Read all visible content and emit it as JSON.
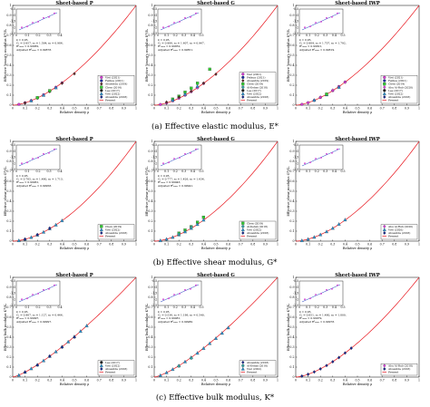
{
  "captions": [
    "(a) Effective elastic modulus, E*",
    "(b) Effective shear modulus, G*",
    "(c) Effective bulk modulus, K*"
  ],
  "colors": {
    "present": "#e8141c",
    "fit": "#1f3fbf",
    "Viet (2021)": "#d23fd2",
    "Feihua (2021)": "#1f2f9f",
    "Abueidda (2019)": "#5a2a2a",
    "Chen (2016)": "#32c832",
    "Chen (2019)": "#32c832",
    "Lee (2017)": "#222222",
    "Viet (2022)": "#2a8fc9",
    "Abueidda (2018)": "#1a2a8a",
    "Al-Ketan (2018)": "#3aa0a0",
    "Abu Al-Rub (2020)": "#d23fd2",
    "Abu Al-Rub (2018)": "#d23fd2",
    "Viet (2020)": "#2a8fc9"
  },
  "chart_data": [
    {
      "type": "scatter",
      "title": "Sheet-based P",
      "xlabel": "Relative density ρ",
      "ylabel": "Effective Young's modulus E*/Eₛ",
      "xlim": [
        0,
        1
      ],
      "ylim": [
        0,
        1
      ],
      "xticks": [
        "0",
        "0.1",
        "0.2",
        "0.3",
        "0.4",
        "0.5",
        "0.6",
        "0.7",
        "0.8",
        "0.9",
        "1"
      ],
      "yticks": [
        "0",
        "0.1",
        "0.2",
        "0.3",
        "0.4",
        "0.5",
        "0.6",
        "0.7",
        "0.8",
        "0.9",
        "1"
      ],
      "present_exponent": 1.63,
      "legend": [
        "Viet (2021)",
        "Feihua (2021)",
        "Abueidda (2019)",
        "Chen (2016)",
        "Lee (2017)",
        "Viet (2022)",
        "Abueidda (2018)",
        "Present"
      ],
      "series": [
        {
          "name": "Viet (2021)",
          "marker": "circle",
          "x": [
            0.05,
            0.1,
            0.15,
            0.2,
            0.25,
            0.3,
            0.35,
            0.4
          ],
          "y": [
            0.0075,
            0.024,
            0.046,
            0.073,
            0.104,
            0.139,
            0.179,
            0.224
          ]
        },
        {
          "name": "Abueidda (2019)",
          "marker": "diamond",
          "x": [
            0.1,
            0.2,
            0.3,
            0.4,
            0.5
          ],
          "y": [
            0.022,
            0.071,
            0.137,
            0.22,
            0.315
          ]
        },
        {
          "name": "Chen (2016)",
          "marker": "square",
          "x": [
            0.2,
            0.3
          ],
          "y": [
            0.075,
            0.145
          ]
        },
        {
          "name": "Viet (2022)",
          "marker": "triangle",
          "x": [
            0.15,
            0.25,
            0.35
          ],
          "y": [
            0.044,
            0.1,
            0.175
          ]
        }
      ],
      "inset": {
        "xticks": [
          "0",
          "0.1",
          "0.2",
          "0.3",
          "0.4"
        ],
        "yticks": [
          "-2.5",
          "-2",
          "-1.5",
          "-1",
          "-0.5"
        ],
        "annotation": [
          "k = 0.95,",
          "C₁ = 0.957, n₁ = 1.594, n₂ = 0.986,",
          "R²ₘₙₘ = 0.99882,",
          "Adjusted R²ₘₙₘ = 0.99878."
        ]
      }
    },
    {
      "type": "scatter",
      "title": "Sheet-based G",
      "xlabel": "Relative density ρ",
      "ylabel": "Effective Young's modulus E*/Eₛ",
      "xlim": [
        0,
        1
      ],
      "ylim": [
        0,
        1
      ],
      "xticks": [
        "0",
        "0.1",
        "0.2",
        "0.3",
        "0.4",
        "0.5",
        "0.6",
        "0.7",
        "0.8",
        "0.9",
        "1"
      ],
      "yticks": [
        "0",
        "0.1",
        "0.2",
        "0.3",
        "0.4",
        "0.5",
        "0.6",
        "0.7",
        "0.8",
        "0.9",
        "1"
      ],
      "present_exponent": 1.66,
      "legend": [
        "Viet (2021)",
        "Feihua (2021)",
        "Abueidda (2019)",
        "Chen (2019)",
        "Al-Ketan (2018)",
        "Lee (2017)",
        "Viet (2022)",
        "Abueidda (2018)",
        "Present"
      ],
      "series": [
        {
          "name": "Chen (2019)",
          "marker": "square",
          "x": [
            0.15,
            0.2,
            0.25,
            0.3,
            0.35,
            0.45
          ],
          "y": [
            0.06,
            0.09,
            0.13,
            0.17,
            0.22,
            0.36
          ]
        },
        {
          "name": "Viet (2021)",
          "marker": "circle",
          "x": [
            0.05,
            0.1,
            0.15,
            0.2,
            0.25,
            0.3,
            0.35,
            0.4
          ],
          "y": [
            0.007,
            0.022,
            0.043,
            0.069,
            0.1,
            0.135,
            0.174,
            0.218
          ]
        },
        {
          "name": "Abueidda (2019)",
          "marker": "diamond",
          "x": [
            0.1,
            0.2,
            0.3,
            0.4,
            0.5
          ],
          "y": [
            0.03,
            0.08,
            0.14,
            0.22,
            0.31
          ]
        },
        {
          "name": "Viet (2022)",
          "marker": "triangle",
          "x": [
            0.15,
            0.25,
            0.35
          ],
          "y": [
            0.05,
            0.11,
            0.19
          ]
        }
      ],
      "inset": {
        "xticks": [
          "0",
          "0.1",
          "0.2",
          "0.3",
          "0.4",
          "0.5"
        ],
        "yticks": [
          "-2.5",
          "-2",
          "-1.5",
          "-1",
          "-0.5"
        ],
        "annotation": [
          "k = 0.95,",
          "C₁ = 0.986, n₁ = 1.607, n₂ = 0.967,",
          "R²ₘₙₘ = 0.99852,",
          "Adjusted R²ₘₙₘ = 0.99851."
        ]
      }
    },
    {
      "type": "scatter",
      "title": "Sheet-based IWP",
      "xlabel": "Relative density ρ",
      "ylabel": "Effective Young's modulus E*/Eₛ",
      "xlim": [
        0,
        1
      ],
      "ylim": [
        0,
        1
      ],
      "xticks": [
        "0",
        "0.1",
        "0.2",
        "0.3",
        "0.4",
        "0.5",
        "0.6",
        "0.7",
        "0.8",
        "0.9",
        "1"
      ],
      "yticks": [
        "0",
        "0.1",
        "0.2",
        "0.3",
        "0.4",
        "0.5",
        "0.6",
        "0.7",
        "0.8",
        "0.9",
        "1"
      ],
      "present_exponent": 1.6,
      "legend": [
        "Viet (2021)",
        "Feihua (2021)",
        "Chen (2019)",
        "Abu Al-Rub (2020)",
        "Lee (2017)",
        "Viet (2022)",
        "Abueidda (2018)",
        "Present"
      ],
      "series": [
        {
          "name": "Viet (2021)",
          "marker": "circle",
          "x": [
            0.05,
            0.1,
            0.15,
            0.2,
            0.25,
            0.3,
            0.35,
            0.4
          ],
          "y": [
            0.008,
            0.025,
            0.048,
            0.077,
            0.11,
            0.146,
            0.187,
            0.232
          ]
        },
        {
          "name": "Abu Al-Rub (2020)",
          "marker": "diamond",
          "x": [
            0.2,
            0.3,
            0.4
          ],
          "y": [
            0.08,
            0.15,
            0.23
          ]
        },
        {
          "name": "Viet (2022)",
          "marker": "triangle",
          "x": [
            0.15,
            0.25,
            0.35
          ],
          "y": [
            0.05,
            0.105,
            0.18
          ]
        },
        {
          "name": "Chen (2019)",
          "marker": "square",
          "x": [
            0.25
          ],
          "y": [
            0.11
          ]
        }
      ],
      "inset": {
        "xticks": [
          "0",
          "0.1",
          "0.2",
          "0.3",
          "0.4",
          "0.5"
        ],
        "yticks": [
          "-2.5",
          "-2",
          "-1.5",
          "-1",
          "-0.5"
        ],
        "annotation": [
          "k = 0.95,",
          "C₁ = 0.984, n₁ = 1.707, n₂ = 1.792,",
          "R²ₘₙₘ = 0.99821,",
          "Adjusted R²ₘₙₘ = 0.99819."
        ]
      }
    },
    {
      "type": "scatter",
      "title": "Sheet-based P",
      "xlabel": "Relative density ρ",
      "ylabel": "Effective shear modulus G*/Gₛ",
      "xlim": [
        0,
        1
      ],
      "ylim": [
        0,
        1
      ],
      "xticks": [
        "0",
        "0.1",
        "0.2",
        "0.3",
        "0.4",
        "0.5",
        "0.6",
        "0.7",
        "0.8",
        "0.9",
        "1"
      ],
      "yticks": [
        "0",
        "0.1",
        "0.2",
        "0.3",
        "0.4",
        "0.5",
        "0.6",
        "0.7",
        "0.8",
        "0.9",
        "1"
      ],
      "present_exponent": 1.73,
      "legend": [
        "Chen (2019)",
        "Viet (2022)",
        "Abueidda (2018)",
        "Present"
      ],
      "series": [
        {
          "name": "Viet (2022)",
          "marker": "triangle",
          "x": [
            0.05,
            0.1,
            0.15,
            0.2,
            0.25,
            0.3,
            0.35,
            0.4
          ],
          "y": [
            0.006,
            0.019,
            0.038,
            0.062,
            0.091,
            0.125,
            0.163,
            0.206
          ]
        },
        {
          "name": "Abueidda (2018)",
          "marker": "diamond",
          "x": [
            0.1,
            0.2,
            0.3
          ],
          "y": [
            0.02,
            0.065,
            0.13
          ]
        }
      ],
      "inset": {
        "xticks": [
          "0",
          "0.1",
          "0.2",
          "0.3",
          "0.4"
        ],
        "yticks": [
          "-2.5",
          "-2",
          "-1.5",
          "-1",
          "-0.5"
        ],
        "annotation": [
          "k = 0.95,",
          "C₁ = 0.785, n₁ = 1.480, n₂ = 1.713,",
          "R²ₘₙₘ = 0.99961,",
          "Adjusted R²ₘₙₘ = 0.99958."
        ]
      }
    },
    {
      "type": "scatter",
      "title": "Sheet-based G",
      "xlabel": "Relative density ρ",
      "ylabel": "Effective shear modulus G*/Gₛ",
      "xlim": [
        0,
        1
      ],
      "ylim": [
        0,
        1
      ],
      "xticks": [
        "0",
        "0.1",
        "0.2",
        "0.3",
        "0.4",
        "0.5",
        "0.6",
        "0.7",
        "0.8",
        "0.9",
        "1"
      ],
      "yticks": [
        "0",
        "0.1",
        "0.2",
        "0.3",
        "0.4",
        "0.5",
        "0.6",
        "0.7",
        "0.8",
        "0.9",
        "1"
      ],
      "present_exponent": 1.7,
      "legend": [
        "Chen (2019)",
        "Al-Ketan (2018)",
        "Viet (2022)",
        "Abueidda (2018)",
        "Present"
      ],
      "series": [
        {
          "name": "Chen (2019)",
          "marker": "square",
          "x": [
            0.2,
            0.25,
            0.3,
            0.35,
            0.4
          ],
          "y": [
            0.08,
            0.11,
            0.145,
            0.19,
            0.24
          ]
        },
        {
          "name": "Viet (2022)",
          "marker": "triangle",
          "x": [
            0.05,
            0.1,
            0.15,
            0.2,
            0.25,
            0.3,
            0.35,
            0.4
          ],
          "y": [
            0.006,
            0.02,
            0.039,
            0.064,
            0.094,
            0.129,
            0.168,
            0.212
          ]
        },
        {
          "name": "Al-Ketan (2018)",
          "marker": "circle",
          "x": [
            0.2,
            0.3
          ],
          "y": [
            0.07,
            0.14
          ]
        }
      ],
      "inset": {
        "xticks": [
          "0",
          "0.1",
          "0.2",
          "0.3",
          "0.4",
          "0.5"
        ],
        "yticks": [
          "-2.5",
          "-2",
          "-1.5",
          "-1",
          "-0.5"
        ],
        "annotation": [
          "k = 0.95,",
          "C₁ = 0.777, n₁ = 1.426, n₂ = 1.636,",
          "R²ₘₙₘ = 0.99943,",
          "Adjusted R²ₘₙₘ = 0.99941."
        ]
      }
    },
    {
      "type": "scatter",
      "title": "Sheet-based IWP",
      "xlabel": "Relative density ρ",
      "ylabel": "Effective shear modulus G*/Gₛ",
      "xlim": [
        0,
        1
      ],
      "ylim": [
        0,
        1
      ],
      "xticks": [
        "0",
        "0.1",
        "0.2",
        "0.3",
        "0.4",
        "0.5",
        "0.6",
        "0.7",
        "0.8",
        "0.9",
        "1"
      ],
      "yticks": [
        "0",
        "0.1",
        "0.2",
        "0.3",
        "0.4",
        "0.5",
        "0.6",
        "0.7",
        "0.8",
        "0.9",
        "1"
      ],
      "present_exponent": 1.7,
      "legend": [
        "Abu Al-Rub (2020)",
        "Viet (2020)",
        "Abueidda (2018)",
        "Present"
      ],
      "series": [
        {
          "name": "Viet (2020)",
          "marker": "triangle",
          "x": [
            0.05,
            0.1,
            0.15,
            0.2,
            0.25,
            0.3,
            0.35,
            0.4
          ],
          "y": [
            0.006,
            0.02,
            0.04,
            0.065,
            0.095,
            0.13,
            0.17,
            0.214
          ]
        }
      ],
      "inset": {
        "xticks": [
          "0",
          "0.1",
          "0.2",
          "0.3",
          "0.4",
          "0.5"
        ],
        "yticks": [
          "-2.5",
          "-2",
          "-1.5",
          "-1",
          "-0.5"
        ],
        "annotation": []
      }
    },
    {
      "type": "scatter",
      "title": "Sheet-based P",
      "xlabel": "Relative density ρ",
      "ylabel": "Effective bulk modulus K*/Kₛ",
      "xlim": [
        0,
        1
      ],
      "ylim": [
        0,
        1
      ],
      "xticks": [
        "0",
        "0.1",
        "0.2",
        "0.3",
        "0.4",
        "0.5",
        "0.6",
        "0.7",
        "0.8",
        "0.9",
        "1"
      ],
      "yticks": [
        "0",
        "0.1",
        "0.2",
        "0.3",
        "0.4",
        "0.5",
        "0.6",
        "0.7",
        "0.8",
        "0.9",
        "1"
      ],
      "present_exponent": 1.3,
      "legend": [
        "Lee (2017)",
        "Viet (2022)",
        "Abueidda (2018)",
        "Present"
      ],
      "series": [
        {
          "name": "Viet (2022)",
          "marker": "triangle",
          "x": [
            0.05,
            0.1,
            0.15,
            0.2,
            0.25,
            0.3,
            0.35,
            0.4,
            0.45,
            0.5,
            0.55,
            0.6
          ],
          "y": [
            0.02,
            0.05,
            0.085,
            0.123,
            0.165,
            0.209,
            0.255,
            0.304,
            0.354,
            0.406,
            0.46,
            0.515
          ]
        },
        {
          "name": "Abueidda (2018)",
          "marker": "diamond",
          "x": [
            0.1,
            0.2,
            0.3,
            0.4,
            0.5
          ],
          "y": [
            0.05,
            0.12,
            0.21,
            0.3,
            0.4
          ]
        }
      ],
      "inset": {
        "xticks": [
          "0",
          "0.1",
          "0.2",
          "0.3",
          "0.4"
        ],
        "yticks": [
          "-2.5",
          "-2",
          "-1.5",
          "-1",
          "-0.5"
        ],
        "annotation": [
          "k = 0.95,",
          "C₁ = 0.487, n₁ = 1.127, n₂ = 0.466,",
          "R²ₘₙₘ = 0.99997,",
          "Adjusted R²ₘₙₘ = 0.99997."
        ]
      }
    },
    {
      "type": "scatter",
      "title": "Sheet-based G",
      "xlabel": "Relative density ρ",
      "ylabel": "Effective bulk modulus K*/Kₛ",
      "xlim": [
        0,
        1
      ],
      "ylim": [
        0,
        1
      ],
      "xticks": [
        "0",
        "0.1",
        "0.2",
        "0.3",
        "0.4",
        "0.5",
        "0.6",
        "0.7",
        "0.8",
        "0.9",
        "1"
      ],
      "yticks": [
        "0",
        "0.1",
        "0.2",
        "0.3",
        "0.4",
        "0.5",
        "0.6",
        "0.7",
        "0.8",
        "0.9",
        "1"
      ],
      "present_exponent": 1.35,
      "legend": [
        "Abueidda (2018)",
        "Al-Ketan (2018)",
        "Viet (2022)",
        "Present"
      ],
      "series": [
        {
          "name": "Viet (2022)",
          "marker": "triangle",
          "x": [
            0.05,
            0.1,
            0.15,
            0.2,
            0.25,
            0.3,
            0.35,
            0.4,
            0.45,
            0.5,
            0.55,
            0.6
          ],
          "y": [
            0.017,
            0.045,
            0.078,
            0.114,
            0.154,
            0.197,
            0.241,
            0.289,
            0.338,
            0.389,
            0.441,
            0.495
          ]
        },
        {
          "name": "Al-Ketan (2018)",
          "marker": "circle",
          "x": [
            0.2,
            0.3
          ],
          "y": [
            0.11,
            0.19
          ]
        }
      ],
      "inset": {
        "xticks": [
          "0",
          "0.1",
          "0.2",
          "0.3",
          "0.4",
          "0.5"
        ],
        "yticks": [
          "-2.5",
          "-2",
          "-1.5",
          "-1",
          "-0.5"
        ],
        "annotation": [
          "k = 0.95,",
          "C₁ = 0.536, n₁ = 1.186, n₂ = 0.540,",
          "R²ₘₙₘ = 0.99981,",
          "Adjusted R²ₘₙₘ = 0.99980."
        ]
      }
    },
    {
      "type": "scatter",
      "title": "Sheet-based IWP",
      "xlabel": "Relative density ρ",
      "ylabel": "Effective bulk modulus K*/Kₛ",
      "xlim": [
        0,
        1
      ],
      "ylim": [
        0,
        1
      ],
      "xticks": [
        "0",
        "0.1",
        "0.2",
        "0.3",
        "0.4",
        "0.5",
        "0.6",
        "0.7",
        "0.8",
        "0.9",
        "1"
      ],
      "yticks": [
        "0",
        "0.1",
        "0.2",
        "0.3",
        "0.4",
        "0.5",
        "0.6",
        "0.7",
        "0.8",
        "0.9",
        "1"
      ],
      "present_exponent": 1.55,
      "legend": [
        "Abu Al-Rub (2018)",
        "Abueidda (2018)",
        "Present"
      ],
      "series": [
        {
          "name": "Abueidda (2018)",
          "marker": "diamond",
          "x": [
            0.05,
            0.1,
            0.15,
            0.2,
            0.25,
            0.3,
            0.35,
            0.4,
            0.45
          ],
          "y": [
            0.01,
            0.028,
            0.052,
            0.082,
            0.116,
            0.154,
            0.196,
            0.242,
            0.29
          ]
        }
      ],
      "inset": {
        "xticks": [
          "0",
          "0.1",
          "0.2",
          "0.3",
          "0.4",
          "0.5"
        ],
        "yticks": [
          "-2.5",
          "-2",
          "-1.5",
          "-1",
          "-0.5"
        ],
        "annotation": [
          "k = 0.95,",
          "C₁ = 0.651, n₁ = 1.480, n₂ = 1.800,",
          "R²ₘₙₘ = 0.99979,",
          "Adjusted R²ₘₙₘ = 0.99978."
        ]
      }
    }
  ]
}
